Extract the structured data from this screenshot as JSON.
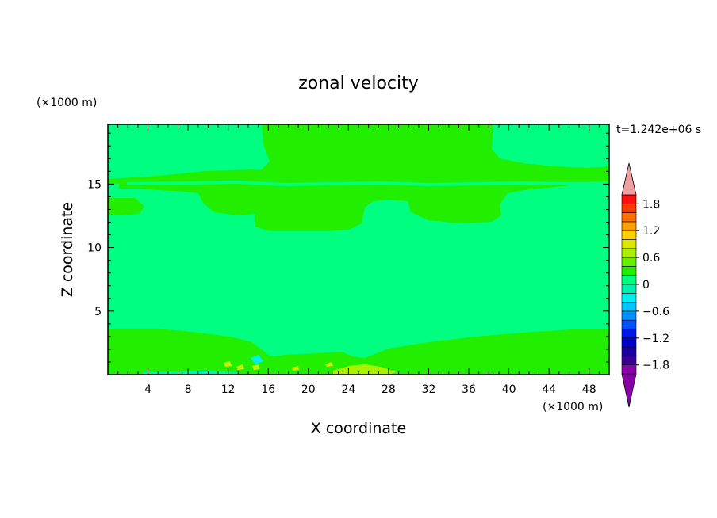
{
  "chart_data": {
    "type": "contour",
    "title": "zonal velocity",
    "xlabel": "X coordinate",
    "ylabel": "Z coordinate",
    "x_unit": "(×1000 m)",
    "y_unit": "(×1000 m)",
    "time_label": "t=1.242e+06 s",
    "xlim": [
      0,
      50
    ],
    "ylim": [
      0,
      19.7
    ],
    "x_ticks": [
      "4",
      "8",
      "12",
      "16",
      "20",
      "24",
      "28",
      "32",
      "36",
      "40",
      "44",
      "48"
    ],
    "y_ticks": [
      "5",
      "10",
      "15"
    ],
    "colorbar": {
      "levels": [
        -2.0,
        -1.8,
        -1.6,
        -1.4,
        -1.2,
        -1.0,
        -0.8,
        -0.6,
        -0.4,
        -0.2,
        0.0,
        0.2,
        0.4,
        0.6,
        0.8,
        1.0,
        1.2,
        1.4,
        1.6,
        1.8,
        2.0
      ],
      "tick_labels": [
        "1.8",
        "1.2",
        "0.6",
        "0",
        "−0.6",
        "−1.2",
        "−1.8"
      ],
      "tick_values": [
        1.8,
        1.2,
        0.6,
        0,
        -0.6,
        -1.2,
        -1.8
      ],
      "colors_low_to_high": [
        "#8a00a8",
        "#3a0096",
        "#1a00a0",
        "#0000c8",
        "#0018e6",
        "#0050ff",
        "#0090ff",
        "#00c8ff",
        "#00f0f0",
        "#00f0b0",
        "#00ff80",
        "#22ee00",
        "#66f000",
        "#aaf000",
        "#dde800",
        "#ffd000",
        "#ffa000",
        "#ff7000",
        "#ff3a00",
        "#ff1010",
        "#f0a0a0"
      ],
      "under_color": "#8a00a8",
      "over_color": "#f0a0a0"
    },
    "background_value_color": "#00ff80",
    "positive_region_color": "#22ee00"
  }
}
